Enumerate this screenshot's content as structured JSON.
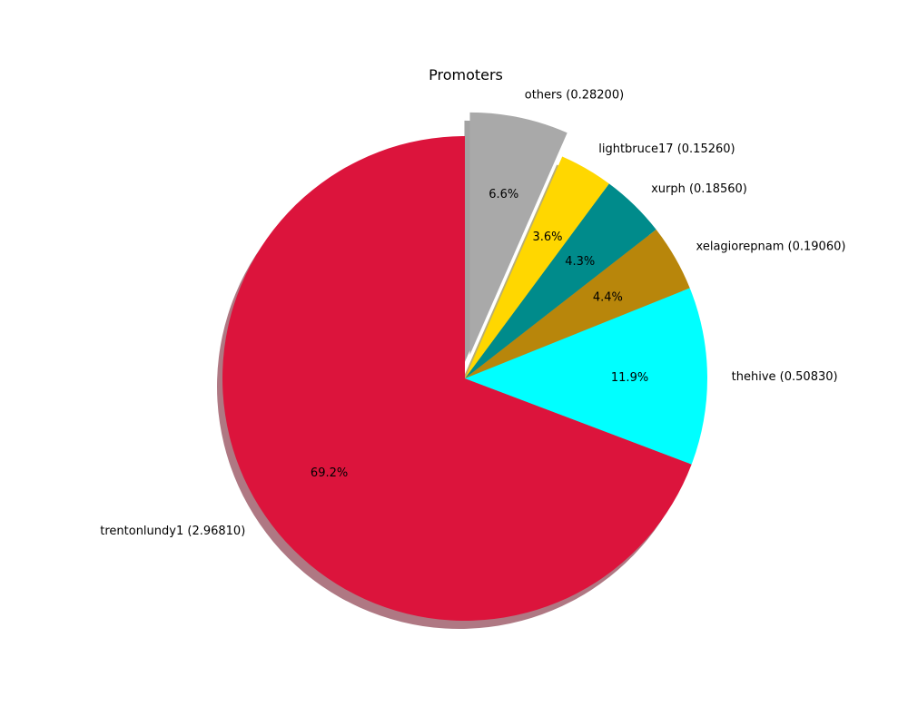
{
  "chart_data": {
    "type": "pie",
    "title": "Promoters",
    "slices": [
      {
        "label": "trentonlundy1 (2.96810)",
        "name": "trentonlundy1",
        "value": 2.9681,
        "pct_label": "69.2%",
        "color": "#dc143c",
        "explode": 0
      },
      {
        "label": "thehive (0.50830)",
        "name": "thehive",
        "value": 0.5083,
        "pct_label": "11.9%",
        "color": "#00ffff",
        "explode": 0
      },
      {
        "label": "xelagiorepnam (0.19060)",
        "name": "xelagiorepnam",
        "value": 0.1906,
        "pct_label": "4.4%",
        "color": "#b8860b",
        "explode": 0
      },
      {
        "label": "xurph (0.18560)",
        "name": "xurph",
        "value": 0.1856,
        "pct_label": "4.3%",
        "color": "#008b8b",
        "explode": 0
      },
      {
        "label": "lightbruce17 (0.15260)",
        "name": "lightbruce17",
        "value": 0.1526,
        "pct_label": "3.6%",
        "color": "#ffd700",
        "explode": 0
      },
      {
        "label": "others (0.28200)",
        "name": "others",
        "value": 0.282,
        "pct_label": "6.6%",
        "color": "#a9a9a9",
        "explode": 0.1
      }
    ],
    "start_angle_deg": 90,
    "direction": "counterclockwise",
    "shadow": true
  }
}
